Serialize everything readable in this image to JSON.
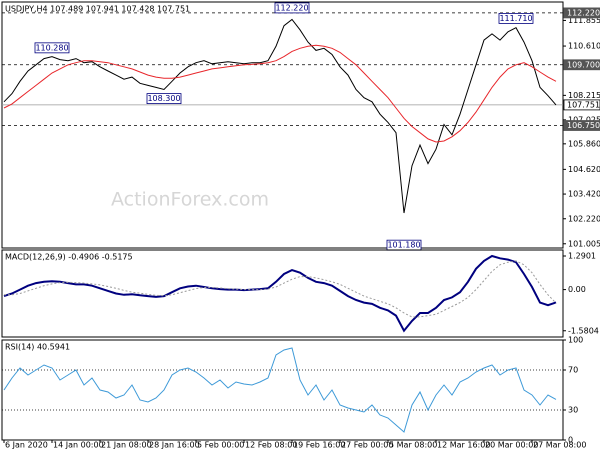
{
  "chart_data": [
    {
      "type": "line",
      "title": "USDJPY,H4 107.489 107.941 107.428 107.751",
      "watermark": "ActionForex.com",
      "xlim": [
        0,
        69
      ],
      "ylim": [
        100.8,
        112.75
      ],
      "yticks": [
        111.855,
        {
          "value": 110.61,
          "label": "110.610"
        },
        108.215,
        107.025,
        {
          "value": 105.86,
          "label": "105.860"
        },
        {
          "value": 104.62,
          "label": "104.620"
        },
        {
          "value": 103.42,
          "label": "103.420"
        },
        {
          "value": 102.22,
          "label": "102.220"
        },
        101.005
      ],
      "levels": [
        {
          "value": 112.22,
          "label": "112.220",
          "style": "dashed"
        },
        {
          "value": 109.7,
          "label": "109.700",
          "style": "dashed"
        },
        {
          "value": 107.751,
          "label": "107.751",
          "style": "current"
        },
        {
          "value": 106.75,
          "label": "106.750",
          "style": "dashed"
        }
      ],
      "annotations": [
        {
          "x": 6,
          "value": 110.28,
          "label": "110.280"
        },
        {
          "x": 20,
          "value": 108.3,
          "label": "108.300"
        },
        {
          "x": 36,
          "value": 112.22,
          "label": "112.220"
        },
        {
          "x": 64,
          "value": 111.71,
          "label": "111.710"
        },
        {
          "x": 50,
          "value": 101.18,
          "label": "101.180"
        }
      ],
      "series": [
        {
          "color": "#000000",
          "values": [
            107.9,
            108.3,
            108.9,
            109.4,
            109.7,
            110.0,
            110.1,
            109.95,
            109.9,
            110.0,
            109.8,
            109.85,
            109.6,
            109.4,
            109.2,
            109.0,
            109.1,
            108.8,
            108.7,
            108.6,
            108.5,
            108.9,
            109.3,
            109.6,
            109.8,
            109.9,
            109.75,
            109.8,
            109.85,
            109.8,
            109.75,
            109.8,
            109.8,
            109.9,
            110.6,
            111.6,
            111.9,
            111.4,
            110.8,
            110.4,
            110.5,
            110.2,
            109.6,
            109.2,
            108.5,
            108.1,
            107.9,
            107.3,
            106.9,
            106.4,
            102.5,
            104.8,
            105.8,
            104.9,
            105.6,
            106.8,
            106.3,
            107.3,
            108.5,
            109.7,
            110.9,
            111.2,
            110.9,
            111.3,
            111.5,
            110.8,
            109.9,
            108.6,
            108.2,
            107.75
          ]
        },
        {
          "color": "#e8262b",
          "values": [
            107.6,
            107.8,
            108.1,
            108.4,
            108.7,
            109.0,
            109.3,
            109.5,
            109.7,
            109.8,
            109.9,
            109.9,
            109.85,
            109.8,
            109.7,
            109.6,
            109.5,
            109.35,
            109.2,
            109.1,
            109.05,
            109.05,
            109.1,
            109.2,
            109.3,
            109.4,
            109.5,
            109.55,
            109.6,
            109.65,
            109.7,
            109.72,
            109.75,
            109.8,
            109.9,
            110.1,
            110.35,
            110.5,
            110.6,
            110.65,
            110.6,
            110.5,
            110.3,
            110.0,
            109.7,
            109.3,
            108.9,
            108.5,
            108.1,
            107.6,
            107.1,
            106.7,
            106.4,
            106.1,
            105.95,
            106.0,
            106.2,
            106.5,
            106.9,
            107.4,
            108.0,
            108.6,
            109.1,
            109.5,
            109.7,
            109.8,
            109.6,
            109.35,
            109.1,
            108.9
          ]
        }
      ]
    },
    {
      "type": "line",
      "title": "MACD(12,26,9) -0.4906 -0.5175",
      "xlim": [
        0,
        69
      ],
      "ylim": [
        -1.82,
        1.52
      ],
      "yticks": [
        1.2901,
        {
          "value": 0,
          "label": "0.00"
        },
        -1.5804
      ],
      "series": [
        {
          "color": "#00007f",
          "values": [
            -0.25,
            -0.15,
            0.0,
            0.15,
            0.25,
            0.3,
            0.32,
            0.3,
            0.25,
            0.2,
            0.2,
            0.15,
            0.05,
            -0.05,
            -0.15,
            -0.2,
            -0.18,
            -0.22,
            -0.25,
            -0.28,
            -0.25,
            -0.1,
            0.05,
            0.12,
            0.15,
            0.1,
            0.05,
            0.02,
            0.0,
            0.0,
            -0.02,
            0.0,
            0.02,
            0.05,
            0.3,
            0.6,
            0.75,
            0.65,
            0.45,
            0.3,
            0.25,
            0.15,
            -0.05,
            -0.25,
            -0.4,
            -0.5,
            -0.55,
            -0.7,
            -0.8,
            -1.0,
            -1.58,
            -1.2,
            -0.9,
            -0.9,
            -0.7,
            -0.4,
            -0.3,
            -0.1,
            0.3,
            0.8,
            1.1,
            1.29,
            1.2,
            1.15,
            1.05,
            0.6,
            0.1,
            -0.5,
            -0.6,
            -0.49
          ]
        },
        {
          "color": "#9a9a9a",
          "values": [
            -0.2,
            -0.2,
            -0.15,
            -0.05,
            0.05,
            0.15,
            0.22,
            0.27,
            0.28,
            0.27,
            0.25,
            0.22,
            0.18,
            0.12,
            0.05,
            -0.03,
            -0.1,
            -0.14,
            -0.18,
            -0.22,
            -0.24,
            -0.2,
            -0.12,
            -0.04,
            0.04,
            0.08,
            0.08,
            0.06,
            0.04,
            0.02,
            0.0,
            0.0,
            0.0,
            0.02,
            0.1,
            0.25,
            0.4,
            0.5,
            0.5,
            0.45,
            0.38,
            0.3,
            0.2,
            0.05,
            -0.1,
            -0.25,
            -0.35,
            -0.45,
            -0.55,
            -0.7,
            -0.9,
            -1.05,
            -1.05,
            -1.0,
            -0.95,
            -0.8,
            -0.65,
            -0.5,
            -0.3,
            0.0,
            0.35,
            0.7,
            0.95,
            1.05,
            1.1,
            0.95,
            0.65,
            0.2,
            -0.2,
            -0.52
          ]
        }
      ]
    },
    {
      "type": "line",
      "title": "RSI(14) 40.5941",
      "xlim": [
        0,
        69
      ],
      "ylim": [
        0,
        100
      ],
      "yticks": [
        100,
        70,
        30,
        0
      ],
      "levels": [
        {
          "value": 70,
          "style": "dotted"
        },
        {
          "value": 30,
          "style": "dotted"
        }
      ],
      "xticks": [
        {
          "value": 0,
          "label": "6 Jan 2020"
        },
        {
          "value": 6,
          "label": "14 Jan 00:00"
        },
        {
          "value": 12,
          "label": "21 Jan 08:00"
        },
        {
          "value": 18,
          "label": "28 Jan 16:00"
        },
        {
          "value": 24,
          "label": "5 Feb 00:00"
        },
        {
          "value": 30,
          "label": "12 Feb 08:00"
        },
        {
          "value": 36,
          "label": "19 Feb 16:00"
        },
        {
          "value": 42,
          "label": "27 Feb 00:00"
        },
        {
          "value": 48,
          "label": "5 Mar 08:00"
        },
        {
          "value": 54,
          "label": "12 Mar 16:00"
        },
        {
          "value": 60,
          "label": "20 Mar 00:00"
        },
        {
          "value": 66,
          "label": "27 Mar 08:00"
        }
      ],
      "series": [
        {
          "color": "#3e9ad8",
          "values": [
            50,
            62,
            72,
            65,
            70,
            75,
            72,
            60,
            65,
            70,
            55,
            62,
            50,
            48,
            42,
            45,
            55,
            40,
            38,
            42,
            50,
            65,
            70,
            72,
            68,
            62,
            55,
            60,
            52,
            58,
            56,
            55,
            58,
            62,
            85,
            90,
            92,
            60,
            45,
            55,
            40,
            50,
            35,
            32,
            30,
            28,
            35,
            25,
            22,
            15,
            8,
            35,
            48,
            30,
            45,
            55,
            45,
            58,
            62,
            68,
            72,
            75,
            65,
            70,
            72,
            50,
            45,
            35,
            45,
            40.59
          ]
        }
      ]
    }
  ]
}
